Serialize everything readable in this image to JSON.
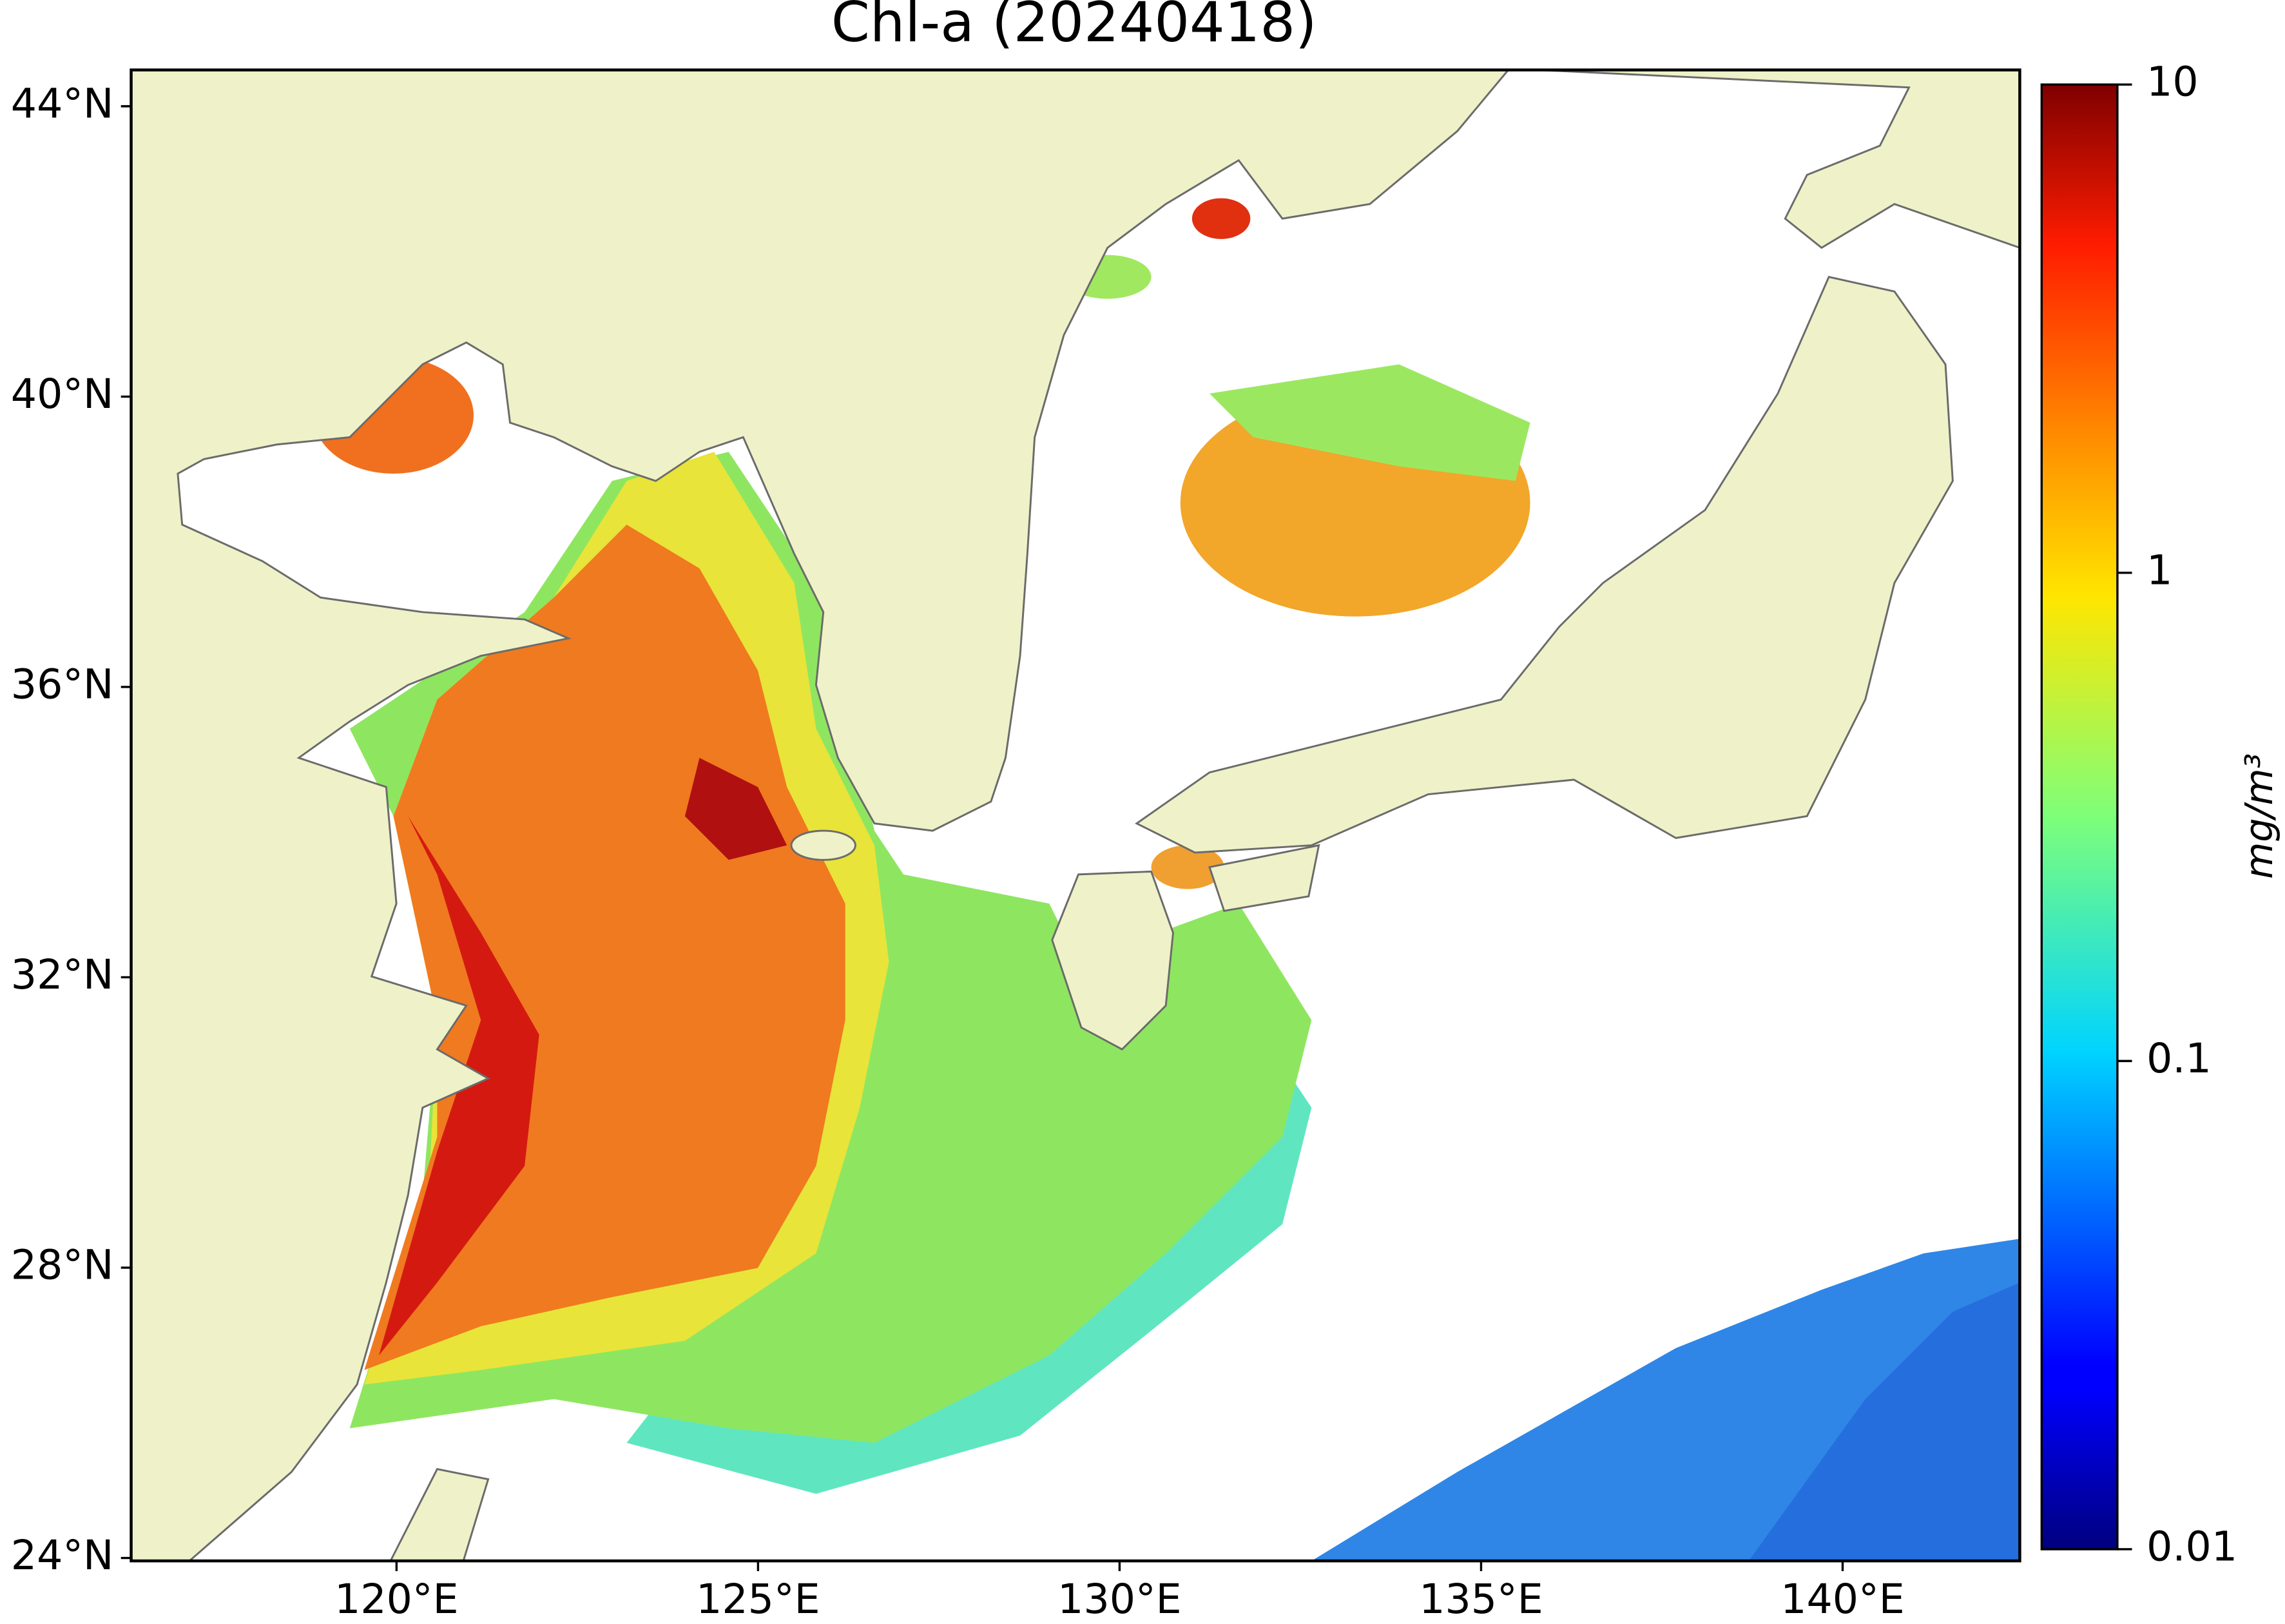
{
  "chart_data": {
    "type": "map",
    "title": "Chl-a (20240418)",
    "xlim": [
      116.33,
      142.45
    ],
    "ylim": [
      23.96,
      44.5
    ],
    "xticks": [
      {
        "value": 120,
        "label": "120°E"
      },
      {
        "value": 125,
        "label": "125°E"
      },
      {
        "value": 130,
        "label": "130°E"
      },
      {
        "value": 135,
        "label": "135°E"
      },
      {
        "value": 140,
        "label": "140°E"
      }
    ],
    "yticks": [
      {
        "value": 24,
        "label": "24°N"
      },
      {
        "value": 28,
        "label": "28°N"
      },
      {
        "value": 32,
        "label": "32°N"
      },
      {
        "value": 36,
        "label": "36°N"
      },
      {
        "value": 40,
        "label": "40°N"
      },
      {
        "value": 44,
        "label": "44°N"
      }
    ],
    "colorbar": {
      "label": "mg/m³",
      "scale": "log",
      "colormap": "jet",
      "clim": [
        0.01,
        10
      ],
      "ticks": [
        0.01,
        0.1,
        1,
        10
      ]
    }
  }
}
